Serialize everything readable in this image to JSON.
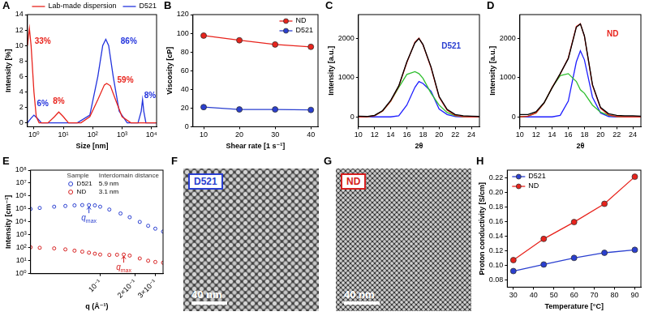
{
  "chart_data": [
    {
      "panel": "A",
      "type": "line",
      "xlabel": "Size [nm]",
      "ylabel": "Intensity [%]",
      "log": "x",
      "xlim": [
        0.6,
        15000
      ],
      "xticks": [
        {
          "value": 1,
          "label": "10⁰"
        },
        {
          "value": 10,
          "label": "10¹"
        },
        {
          "value": 100,
          "label": "10²"
        },
        {
          "value": 1000,
          "label": "10³"
        },
        {
          "value": 10000,
          "label": "10⁴"
        }
      ],
      "ylim": [
        -0.5,
        14
      ],
      "yticks": [
        0,
        2,
        4,
        6,
        8,
        10,
        12,
        14
      ],
      "grid": false,
      "legend": "top",
      "marker": "none",
      "line_style": "solid",
      "series": [
        {
          "name": "Lab-made dispersion",
          "color": "#e8231c",
          "x": [
            0.6,
            0.7,
            0.8,
            1,
            1.2,
            1.5,
            3,
            5,
            7,
            10,
            15,
            40,
            80,
            150,
            250,
            300,
            400,
            600,
            1000,
            2000,
            15000
          ],
          "values": [
            10,
            12.2,
            10,
            4,
            0.8,
            0,
            0,
            0.8,
            1.4,
            0.8,
            0,
            0,
            0.8,
            3,
            4.9,
            5.1,
            4.8,
            3,
            0.8,
            0,
            0
          ]
        },
        {
          "name": "D521",
          "color": "#2233dd",
          "x": [
            0.6,
            0.8,
            1,
            1.3,
            1.8,
            30,
            80,
            150,
            220,
            280,
            350,
            500,
            800,
            1500,
            3500,
            4500,
            5000,
            5500,
            6500,
            15000
          ],
          "values": [
            0,
            0.6,
            1,
            0.6,
            0,
            0,
            1,
            6,
            10,
            10.8,
            10,
            6,
            1.5,
            0,
            0,
            1.5,
            3,
            1.5,
            0,
            0
          ]
        }
      ],
      "annotations": [
        {
          "text": "33%",
          "x": 2,
          "y": 10.5,
          "color": "#e8231c"
        },
        {
          "text": "6%",
          "x": 2,
          "y": 2.5,
          "color": "#2233dd"
        },
        {
          "text": "8%",
          "x": 7,
          "y": 2.8,
          "color": "#e8231c"
        },
        {
          "text": "59%",
          "x": 1300,
          "y": 5.5,
          "color": "#e8231c"
        },
        {
          "text": "86%",
          "x": 1700,
          "y": 10.5,
          "color": "#2233dd"
        },
        {
          "text": "8%",
          "x": 9000,
          "y": 3.5,
          "color": "#2233dd"
        }
      ]
    },
    {
      "panel": "B",
      "type": "line",
      "xlabel": "Shear rate [1 s⁻¹]",
      "ylabel": "Viscosity [cP]",
      "x": [
        10,
        20,
        30,
        40
      ],
      "xlim": [
        7,
        42
      ],
      "xticks": [
        10,
        20,
        30,
        40
      ],
      "ylim": [
        0,
        120
      ],
      "yticks": [
        0,
        20,
        40,
        60,
        80,
        100,
        120
      ],
      "grid": false,
      "legend": "upper right",
      "marker": "circle",
      "line_style": "solid",
      "series": [
        {
          "name": "ND",
          "color": "#e8231c",
          "values": [
            97.5,
            92.5,
            88,
            85.5
          ]
        },
        {
          "name": "D521",
          "color": "#2a3fd0",
          "values": [
            21,
            18.5,
            18.5,
            18
          ]
        }
      ]
    },
    {
      "panel": "C",
      "type": "line",
      "xlabel": "2θ",
      "ylabel": "Intensity [a.u.]",
      "x": [
        10,
        11,
        12,
        13,
        14,
        15,
        16,
        17,
        17.5,
        18,
        19,
        20,
        21,
        22,
        23,
        24,
        25
      ],
      "xlim": [
        10,
        25
      ],
      "xticks": [
        10,
        12,
        14,
        16,
        18,
        20,
        22,
        24
      ],
      "ylim": [
        -250,
        2600
      ],
      "yticks": [
        0,
        1000,
        2000
      ],
      "grid": false,
      "marker": "none",
      "line_style": "solid",
      "series": [
        {
          "color": "#000000",
          "values": [
            20,
            10,
            40,
            160,
            420,
            790,
            1400,
            1880,
            1990,
            1840,
            1270,
            520,
            190,
            60,
            30,
            20,
            10
          ]
        },
        {
          "color": "#e8231c",
          "values": [
            0,
            0,
            30,
            150,
            400,
            780,
            1380,
            1900,
            2000,
            1830,
            1250,
            500,
            170,
            40,
            5,
            0,
            0
          ]
        },
        {
          "color": "#2fbf2f",
          "values": [
            0,
            0,
            30,
            150,
            400,
            750,
            1080,
            1150,
            1100,
            980,
            600,
            300,
            110,
            30,
            5,
            0,
            0
          ]
        },
        {
          "color": "#1f1fff",
          "values": [
            0,
            0,
            0,
            0,
            0,
            30,
            300,
            750,
            900,
            850,
            650,
            200,
            60,
            10,
            0,
            0,
            0
          ]
        }
      ],
      "annotations": [
        {
          "text": "D521",
          "x": 21.5,
          "y": 1800,
          "color": "#2a3fd0"
        }
      ]
    },
    {
      "panel": "D",
      "type": "line",
      "xlabel": "2θ",
      "ylabel": "Intensity [a.u.]",
      "x": [
        10,
        11,
        12,
        13,
        14,
        15,
        16,
        17,
        17.5,
        18,
        19,
        20,
        21,
        22,
        23,
        24,
        25
      ],
      "xlim": [
        10,
        25
      ],
      "xticks": [
        10,
        12,
        14,
        16,
        18,
        20,
        22,
        24
      ],
      "ylim": [
        -250,
        2600
      ],
      "yticks": [
        0,
        1000,
        2000
      ],
      "grid": false,
      "marker": "none",
      "line_style": "solid",
      "series": [
        {
          "color": "#000000",
          "values": [
            60,
            60,
            130,
            360,
            740,
            1100,
            1480,
            2280,
            2360,
            2060,
            820,
            240,
            80,
            40,
            30,
            30,
            20
          ]
        },
        {
          "color": "#e8231c",
          "values": [
            0,
            20,
            100,
            350,
            750,
            1090,
            1500,
            2300,
            2370,
            2050,
            800,
            220,
            50,
            10,
            0,
            0,
            0
          ]
        },
        {
          "color": "#2fbf2f",
          "values": [
            0,
            20,
            100,
            350,
            750,
            1050,
            1100,
            900,
            690,
            600,
            300,
            120,
            40,
            10,
            0,
            0,
            0
          ]
        },
        {
          "color": "#1f1fff",
          "values": [
            0,
            0,
            0,
            0,
            0,
            40,
            400,
            1400,
            1680,
            1450,
            500,
            100,
            10,
            0,
            0,
            0,
            0
          ]
        }
      ],
      "annotations": [
        {
          "text": "ND",
          "x": 21.5,
          "y": 2100,
          "color": "#e8231c"
        }
      ]
    },
    {
      "panel": "E",
      "type": "scatter",
      "xlabel": "q (Å⁻¹)",
      "ylabel": "Intensity [cm⁻¹]",
      "log": true,
      "xlim": [
        0.025,
        0.35
      ],
      "xticks": [
        {
          "value": 0.1,
          "label": "10⁻¹"
        },
        {
          "value": 0.2,
          "label": "2×10⁻¹"
        },
        {
          "value": 0.3,
          "label": "3×10⁻¹"
        }
      ],
      "ylim": [
        1,
        100000000
      ],
      "yticks": [
        {
          "value": 1,
          "label": "10⁰"
        },
        {
          "value": 10,
          "label": "10¹"
        },
        {
          "value": 100,
          "label": "10²"
        },
        {
          "value": 1000,
          "label": "10³"
        },
        {
          "value": 10000,
          "label": "10⁴"
        },
        {
          "value": 100000,
          "label": "10⁵"
        },
        {
          "value": 1000000,
          "label": "10⁶"
        },
        {
          "value": 10000000,
          "label": "10⁷"
        },
        {
          "value": 100000000,
          "label": "10⁸"
        }
      ],
      "grid": false,
      "legend": "upper right",
      "legend_columns": [
        "Sample",
        "Interdomain distance"
      ],
      "marker": "open_circle",
      "line_style": "none",
      "series": [
        {
          "name": "D521",
          "interdomain_distance": "5.9 nm",
          "color": "#2a3fd0",
          "x": [
            0.025,
            0.03,
            0.04,
            0.05,
            0.06,
            0.07,
            0.08,
            0.09,
            0.1,
            0.12,
            0.15,
            0.18,
            0.22,
            0.26,
            0.3,
            0.35
          ],
          "values": [
            100000,
            120000,
            150000,
            170000,
            190000,
            200000,
            200000,
            190000,
            150000,
            90000,
            45000,
            23000,
            10000,
            5000,
            3000,
            1800
          ]
        },
        {
          "name": "ND",
          "interdomain_distance": "3.1 nm",
          "color": "#d62020",
          "x": [
            0.025,
            0.03,
            0.04,
            0.05,
            0.06,
            0.07,
            0.08,
            0.09,
            0.1,
            0.12,
            0.14,
            0.16,
            0.18,
            0.22,
            0.26,
            0.3,
            0.35
          ],
          "values": [
            110,
            100,
            90,
            75,
            60,
            50,
            42,
            35,
            30,
            28,
            29,
            30,
            25,
            15,
            10,
            8,
            7
          ]
        }
      ],
      "annotations": [
        {
          "text": "q",
          "sub": "max",
          "x": 0.08,
          "y": 200000,
          "color": "#2a3fd0"
        },
        {
          "text": "q",
          "sub": "max",
          "x": 0.16,
          "y": 30,
          "color": "#d62020"
        }
      ]
    },
    {
      "panel": "H",
      "type": "line",
      "xlabel": "Temperature [°C]",
      "ylabel": "Proton conductivity [S/cm]",
      "x": [
        30,
        45,
        60,
        75,
        90
      ],
      "xlim": [
        27,
        93
      ],
      "xticks": [
        30,
        40,
        50,
        60,
        70,
        80,
        90
      ],
      "ylim": [
        0.07,
        0.23
      ],
      "yticks": [
        0.08,
        {
          "value": 0.1,
          "label": "0.10"
        },
        0.12,
        0.14,
        0.16,
        0.18,
        {
          "value": 0.2,
          "label": "0.20"
        },
        0.22
      ],
      "grid": false,
      "legend": "upper left",
      "marker": "circle",
      "line_style": "solid",
      "series": [
        {
          "name": "D521",
          "color": "#2a3fd0",
          "values": [
            0.092,
            0.101,
            0.11,
            0.117,
            0.121
          ]
        },
        {
          "name": "ND",
          "color": "#e8231c",
          "values": [
            0.107,
            0.136,
            0.159,
            0.184,
            0.221
          ]
        }
      ]
    }
  ],
  "micrographs": [
    {
      "panel": "F",
      "label": "D521",
      "color": "#2a3fd0",
      "scale_bar": "40 nm"
    },
    {
      "panel": "G",
      "label": "ND",
      "color": "#d62020",
      "scale_bar": "40 nm"
    }
  ]
}
